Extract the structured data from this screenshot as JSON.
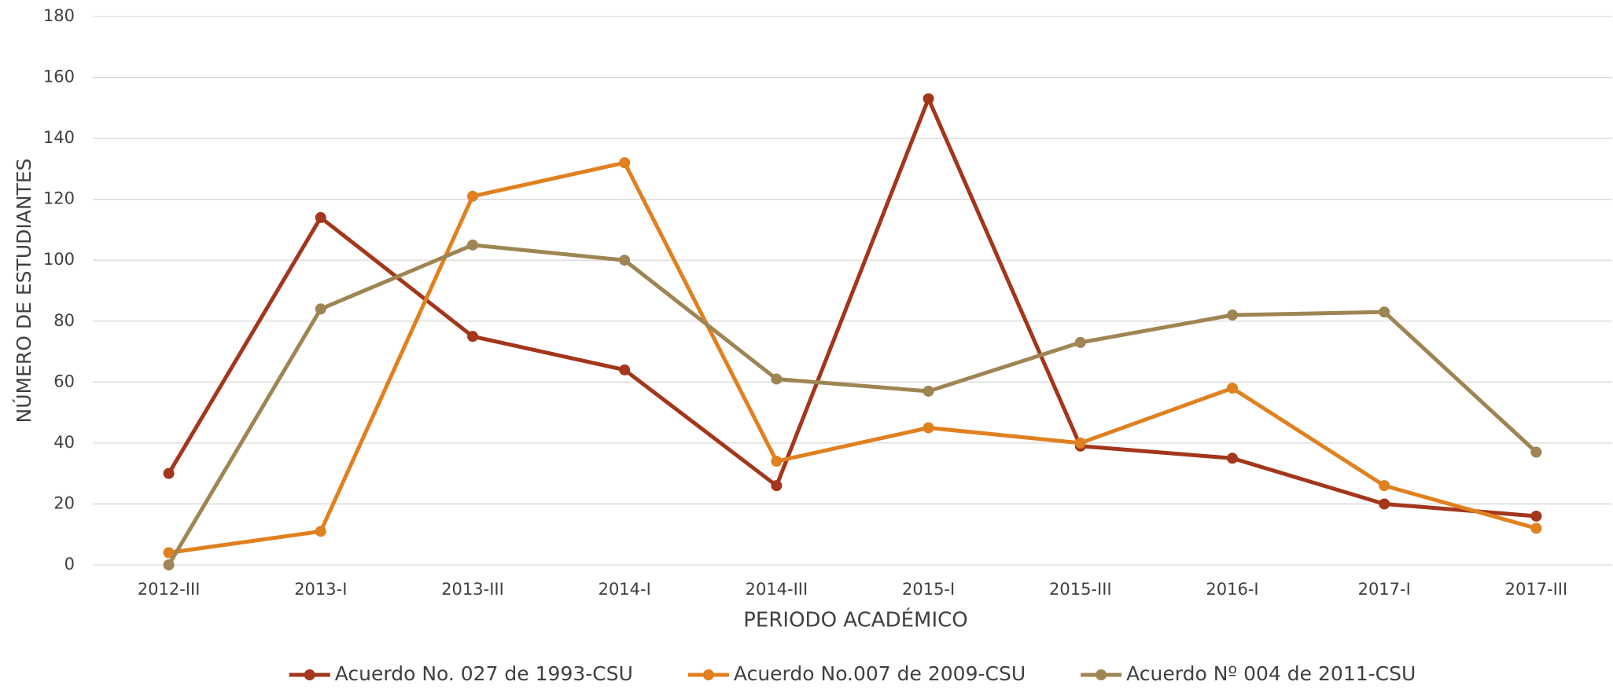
{
  "chart_data": {
    "type": "line",
    "x_label": "PERIODO ACADÉMICO",
    "y_label": "NÚMERO DE ESTUDIANTES",
    "categories": [
      "2012-III",
      "2013-I",
      "2013-III",
      "2014-I",
      "2014-III",
      "2015-I",
      "2015-III",
      "2016-I",
      "2017-I",
      "2017-III"
    ],
    "series": [
      {
        "name": "Acuerdo No. 027 de 1993-CSU",
        "color": "#a3361b",
        "values": [
          30,
          114,
          75,
          64,
          26,
          153,
          39,
          35,
          20,
          16
        ]
      },
      {
        "name": "Acuerdo No.007 de 2009-CSU",
        "color": "#e0801f",
        "values": [
          4,
          11,
          121,
          132,
          34,
          45,
          40,
          58,
          26,
          12
        ]
      },
      {
        "name": "Acuerdo Nº 004 de 2011-CSU",
        "color": "#9e8553",
        "values": [
          0,
          84,
          105,
          100,
          61,
          57,
          73,
          82,
          83,
          37
        ]
      }
    ],
    "ylim": [
      0,
      180
    ],
    "yticks": [
      0,
      20,
      40,
      60,
      80,
      100,
      120,
      140,
      160,
      180
    ],
    "grid": true,
    "legend": "bottom"
  }
}
